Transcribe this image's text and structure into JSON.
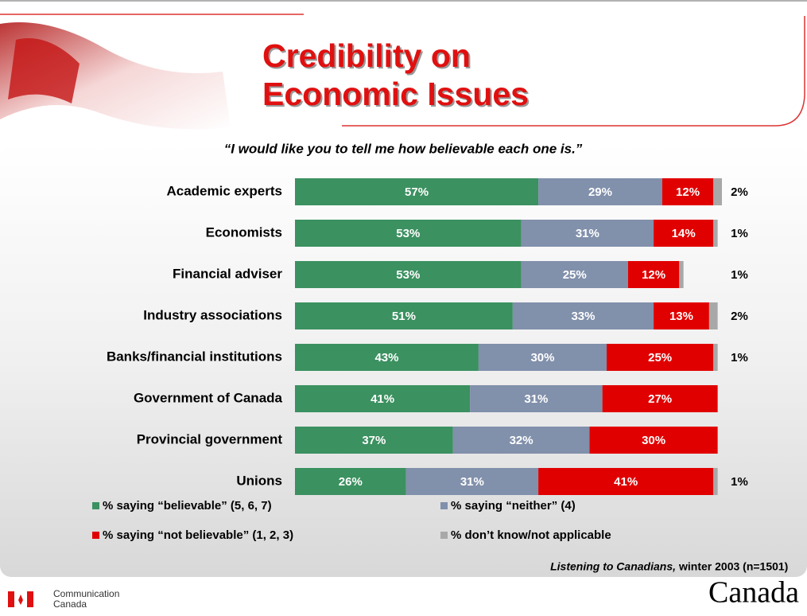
{
  "chart_data": {
    "type": "stacked-bar-horizontal",
    "title": [
      "Credibility on",
      "Economic Issues"
    ],
    "subtitle": "“I would like you to tell me how believable each one is.”",
    "categories": [
      "Academic experts",
      "Economists",
      "Financial adviser",
      "Industry associations",
      "Banks/financial institutions",
      "Government of Canada",
      "Provincial government",
      "Unions"
    ],
    "series": [
      {
        "name": "% saying “believable” (5, 6, 7)",
        "color": "#3b9160",
        "values": [
          57,
          53,
          53,
          51,
          43,
          41,
          37,
          26
        ],
        "value_labels": [
          "57%",
          "53%",
          "53%",
          "51%",
          "43%",
          "41%",
          "37%",
          "26%"
        ]
      },
      {
        "name": "% saying “neither” (4)",
        "color": "#8190ab",
        "values": [
          29,
          31,
          25,
          33,
          30,
          31,
          32,
          31
        ],
        "value_labels": [
          "29%",
          "31%",
          "25%",
          "33%",
          "30%",
          "31%",
          "32%",
          "31%"
        ]
      },
      {
        "name": "% saying “not believable” (1, 2, 3)",
        "color": "#e10000",
        "values": [
          12,
          14,
          12,
          13,
          25,
          27,
          30,
          41
        ],
        "value_labels": [
          "12%",
          "14%",
          "12%",
          "13%",
          "25%",
          "27%",
          "30%",
          "41%"
        ]
      },
      {
        "name": "% don’t know/not applicable",
        "color": "#a8a8a8",
        "values": [
          2,
          1,
          1,
          2,
          1,
          null,
          null,
          1
        ],
        "value_labels": [
          "2%",
          "1%",
          "1%",
          "2%",
          "1%",
          null,
          null,
          "1%"
        ]
      }
    ],
    "source": {
      "italic": "Listening to Canadians,",
      "rest": "winter 2003 (n=1501)"
    },
    "footer": {
      "org": [
        "Communication",
        "Canada"
      ],
      "wordmark": "Canada"
    }
  }
}
